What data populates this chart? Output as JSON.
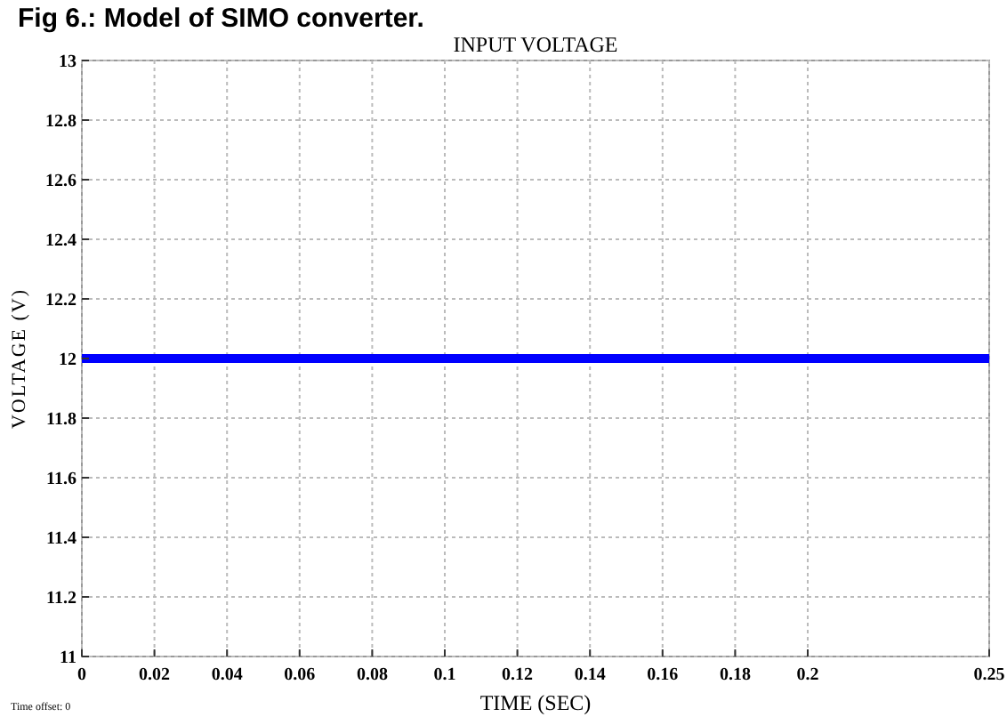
{
  "chart_data": {
    "type": "line",
    "title": "INPUT VOLTAGE",
    "xlabel": "TIME (SEC)",
    "ylabel": "VOLTAGE (V)",
    "annotations": [
      "Fig 6.: Model of SIMO converter.",
      "Time offset: 0"
    ],
    "x": [
      0,
      0.25
    ],
    "series": [
      {
        "color": "#0000ff",
        "values": [
          12,
          12
        ]
      }
    ],
    "xlim": [
      0,
      0.25
    ],
    "xticks": [
      0,
      0.02,
      0.04,
      0.06,
      0.08,
      0.1,
      0.12,
      0.14,
      0.16,
      0.18,
      0.2,
      {
        "value": 0.25,
        "label": "0.25"
      }
    ],
    "ylim": [
      11,
      13
    ],
    "yticks": [
      11,
      11.2,
      11.4,
      11.6,
      11.8,
      12,
      12.2,
      12.4,
      12.6,
      12.8,
      13
    ],
    "grid": true,
    "marker": "none",
    "line_style": "solid"
  }
}
